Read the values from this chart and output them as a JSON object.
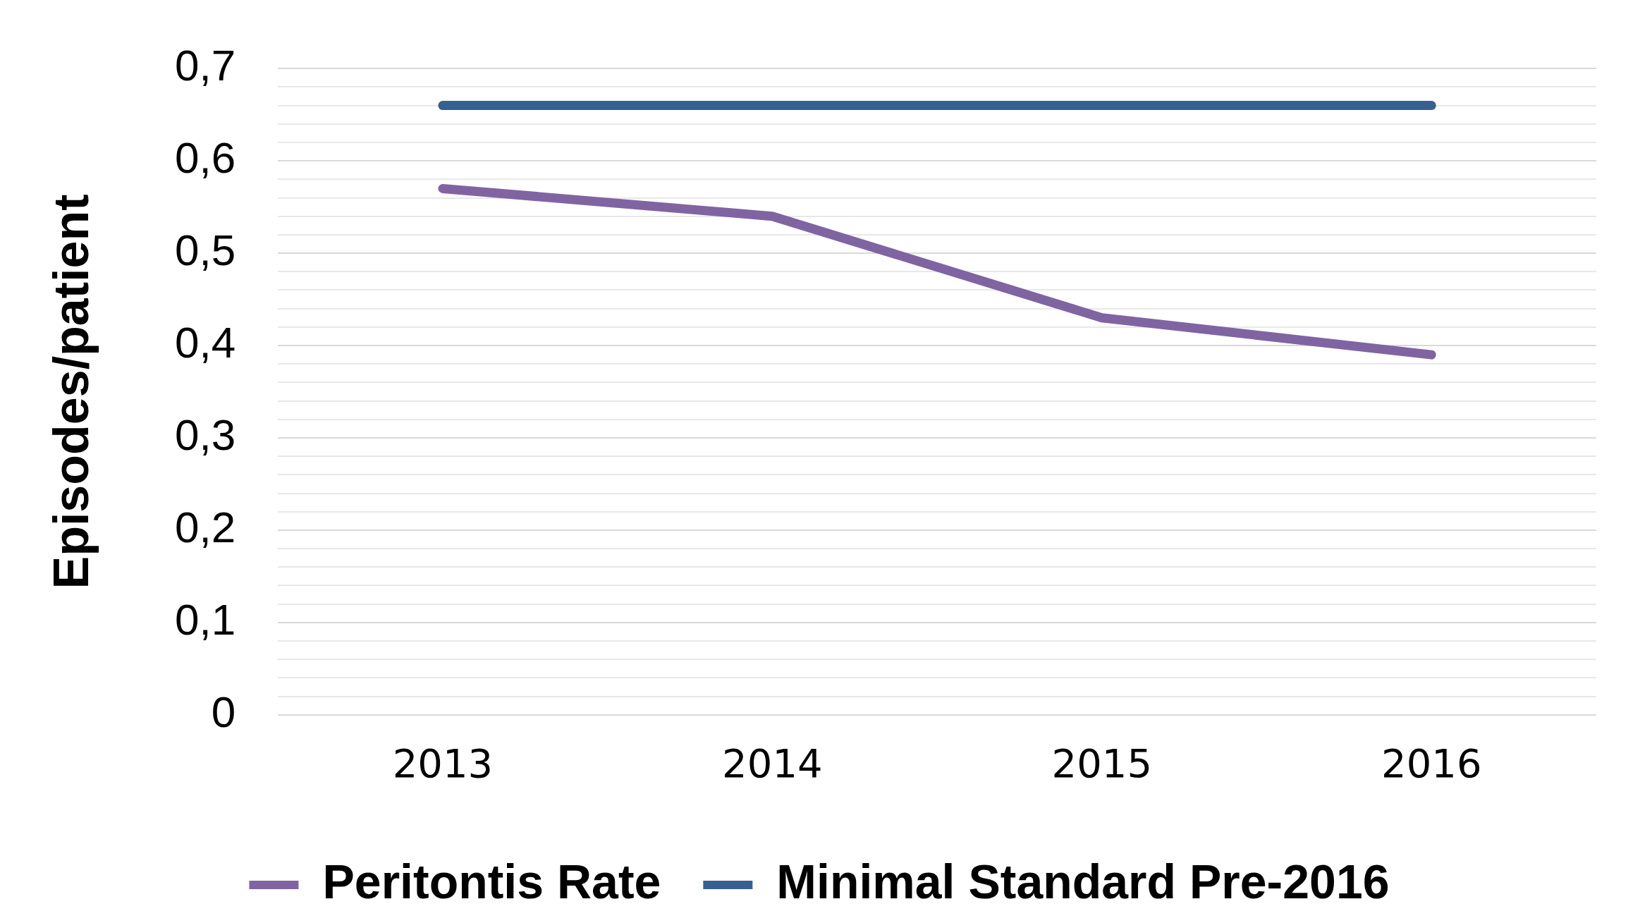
{
  "chart_data": {
    "type": "line",
    "ylabel": "Episodes/patient",
    "categories": [
      "2013",
      "2014",
      "2015",
      "2016"
    ],
    "series": [
      {
        "name": "Peritontis Rate",
        "color": "#8064a2",
        "values": [
          0.57,
          0.54,
          0.43,
          0.39
        ]
      },
      {
        "name": "Minimal Standard Pre-2016",
        "color": "#376092",
        "values": [
          0.66,
          0.66,
          0.66,
          0.66
        ]
      }
    ],
    "ylim": [
      0,
      0.7
    ],
    "yticks": [
      {
        "value": 0,
        "label": "0"
      },
      {
        "value": 0.02,
        "label": null
      },
      {
        "value": 0.04,
        "label": null
      },
      {
        "value": 0.06,
        "label": null
      },
      {
        "value": 0.08,
        "label": null
      },
      {
        "value": 0.1,
        "label": "0,1"
      },
      {
        "value": 0.12,
        "label": null
      },
      {
        "value": 0.14,
        "label": null
      },
      {
        "value": 0.16,
        "label": null
      },
      {
        "value": 0.18,
        "label": null
      },
      {
        "value": 0.2,
        "label": "0,2"
      },
      {
        "value": 0.22,
        "label": null
      },
      {
        "value": 0.24,
        "label": null
      },
      {
        "value": 0.26,
        "label": null
      },
      {
        "value": 0.28,
        "label": null
      },
      {
        "value": 0.3,
        "label": "0,3"
      },
      {
        "value": 0.32,
        "label": null
      },
      {
        "value": 0.34,
        "label": null
      },
      {
        "value": 0.36,
        "label": null
      },
      {
        "value": 0.38,
        "label": null
      },
      {
        "value": 0.4,
        "label": "0,4"
      },
      {
        "value": 0.42,
        "label": null
      },
      {
        "value": 0.44,
        "label": null
      },
      {
        "value": 0.46,
        "label": null
      },
      {
        "value": 0.48,
        "label": null
      },
      {
        "value": 0.5,
        "label": "0,5"
      },
      {
        "value": 0.52,
        "label": null
      },
      {
        "value": 0.54,
        "label": null
      },
      {
        "value": 0.56,
        "label": null
      },
      {
        "value": 0.58,
        "label": null
      },
      {
        "value": 0.6,
        "label": "0,6"
      },
      {
        "value": 0.62,
        "label": null
      },
      {
        "value": 0.64,
        "label": null
      },
      {
        "value": 0.66,
        "label": null
      },
      {
        "value": 0.68,
        "label": null
      },
      {
        "value": 0.7,
        "label": "0,7"
      }
    ],
    "grid": "y",
    "legend": "bottom",
    "marker": "none",
    "line_style": "solid"
  }
}
